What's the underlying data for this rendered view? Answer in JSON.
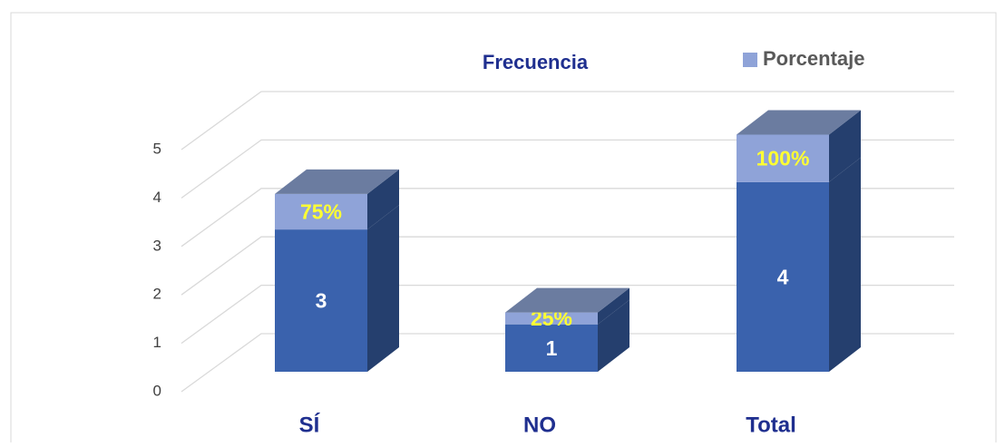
{
  "chart_data": {
    "type": "bar3d_stacked",
    "categories": [
      "SÍ",
      "NO",
      "Total"
    ],
    "series": [
      {
        "name": "Frecuencia",
        "color": "#3a62ad",
        "values": [
          3,
          1,
          4
        ]
      },
      {
        "name": "Porcentaje",
        "color": "#8fa3d8",
        "values": [
          0.75,
          0.25,
          1
        ],
        "value_labels": [
          "75%",
          "25%",
          "100%"
        ]
      }
    ],
    "ylim": [
      0,
      5
    ],
    "yticks": [
      0,
      1,
      2,
      3,
      4,
      5
    ],
    "grid": true
  }
}
